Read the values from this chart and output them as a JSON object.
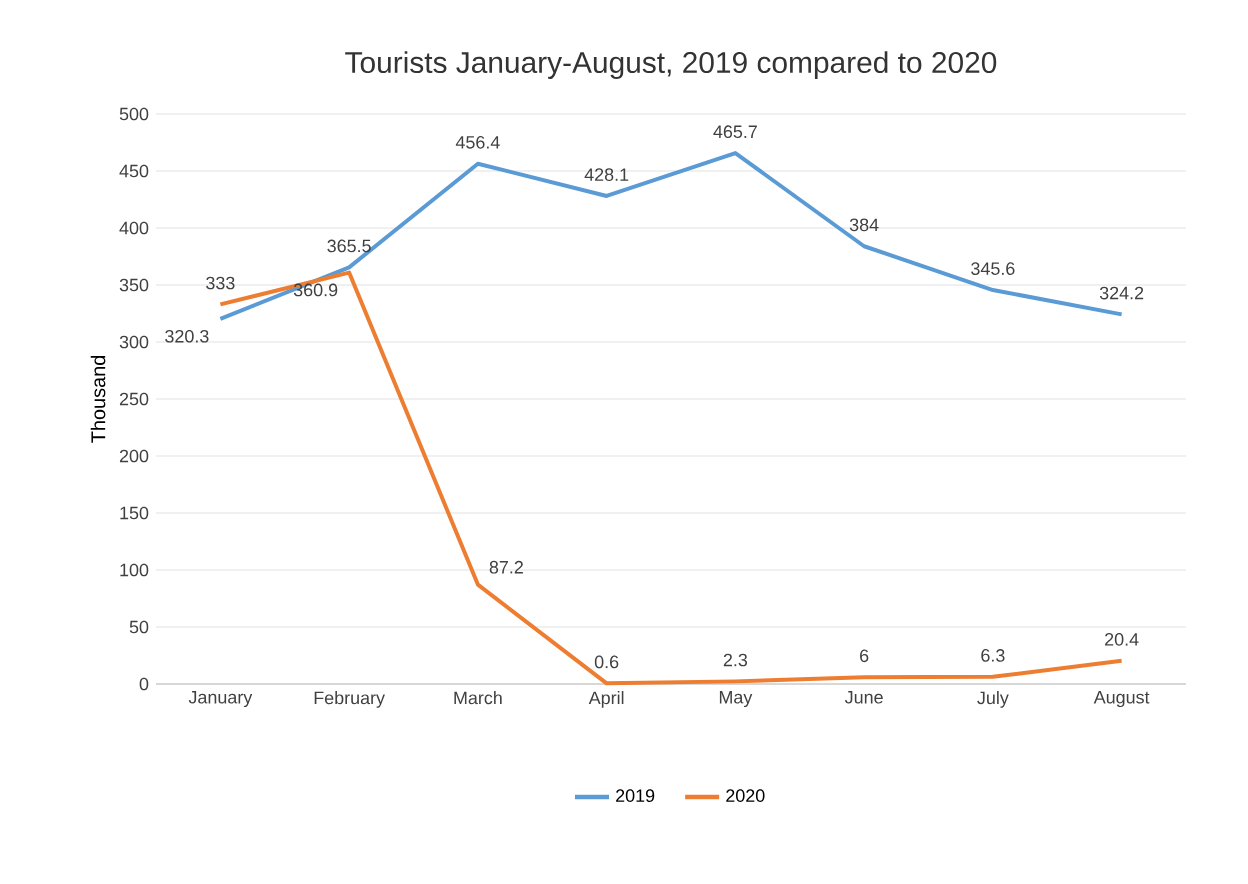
{
  "chart_data": {
    "type": "line",
    "title": "Tourists January-August, 2019 compared to 2020",
    "ylabel": "Thousand",
    "categories": [
      "January",
      "February",
      "March",
      "April",
      "May",
      "June",
      "July",
      "August"
    ],
    "series": [
      {
        "name": "2019",
        "color": "#5b9bd5",
        "values": [
          320.3,
          365.5,
          456.4,
          428.1,
          465.7,
          384,
          345.6,
          324.2
        ]
      },
      {
        "name": "2020",
        "color": "#ed7d31",
        "values": [
          333,
          360.9,
          87.2,
          0.6,
          2.3,
          6,
          6.3,
          20.4
        ]
      }
    ],
    "ylim": [
      0,
      500
    ],
    "yticks": [
      0,
      50,
      100,
      150,
      200,
      250,
      300,
      350,
      400,
      450,
      500
    ],
    "grid": "y",
    "legend": "bottom",
    "data_labels": true,
    "marker": "none",
    "line_style": "solid"
  }
}
